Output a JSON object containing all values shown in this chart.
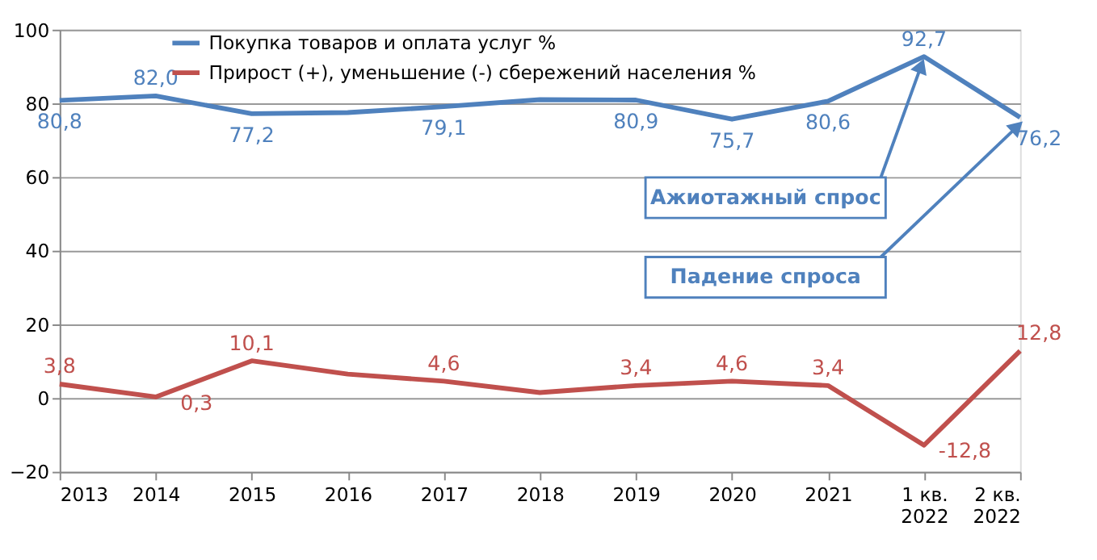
{
  "chart_data": {
    "type": "line",
    "categories": [
      "2013",
      "2014",
      "2015",
      "2016",
      "2017",
      "2018",
      "2019",
      "2020",
      "2021",
      "1 кв. 2022",
      "2 кв. 2022"
    ],
    "series": [
      {
        "name": "Покупка товаров и оплата услуг %",
        "color": "#4f81bd",
        "values": [
          80.8,
          82.0,
          77.2,
          77.5,
          79.1,
          81.0,
          80.9,
          75.7,
          80.6,
          92.7,
          76.2
        ],
        "value_labels": [
          "80,8",
          "82,0",
          "77,2",
          null,
          "79,1",
          null,
          "80,9",
          "75,7",
          "80,6",
          "92,7",
          "76,2"
        ]
      },
      {
        "name": "Прирост (+), уменьшение (-) сбережений населения %",
        "color": "#c0504d",
        "values": [
          3.8,
          0.3,
          10.1,
          6.5,
          4.6,
          1.5,
          3.4,
          4.6,
          3.4,
          -12.8,
          12.8
        ],
        "value_labels": [
          "3,8",
          "0,3",
          "10,1",
          null,
          "4,6",
          null,
          "3,4",
          "4,6",
          "3,4",
          "-12,8",
          "12,8"
        ]
      }
    ],
    "ylim": [
      -20,
      100
    ],
    "yticks": [
      -20,
      0,
      20,
      40,
      60,
      80,
      100
    ],
    "grid": "y",
    "legend": "top left",
    "marker": "none",
    "line_style": "solid",
    "annotations": [
      {
        "text": "Ажиотажный спрос",
        "x": "1 кв. 2022",
        "y": 92.7
      },
      {
        "text": "Падение спроса",
        "x": "2 кв. 2022",
        "y": 76.2
      }
    ]
  }
}
